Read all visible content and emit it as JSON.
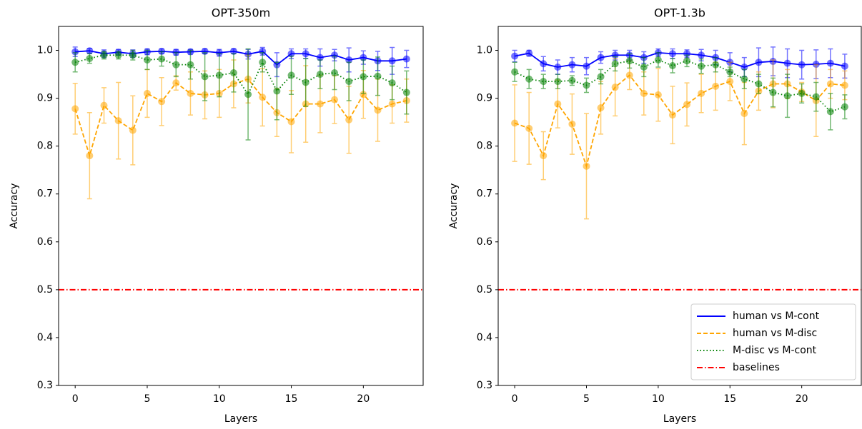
{
  "chart_data": [
    {
      "type": "line",
      "title": "OPT-350m",
      "xlabel": "Layers",
      "ylabel": "Accuracy",
      "x": [
        0,
        1,
        2,
        3,
        4,
        5,
        6,
        7,
        8,
        9,
        10,
        11,
        12,
        13,
        14,
        15,
        16,
        17,
        18,
        19,
        20,
        21,
        22,
        23
      ],
      "xlim": [
        -1.15,
        24.15
      ],
      "ylim": [
        0.3,
        1.05
      ],
      "xticks": [
        0,
        5,
        10,
        15,
        20
      ],
      "yticks": [
        0.3,
        0.4,
        0.5,
        0.6,
        0.7,
        0.8,
        0.9,
        {
          "value": 1,
          "label": "1.0"
        }
      ],
      "series": [
        {
          "color": "blue",
          "linestyle": "solid",
          "values": [
            0.997,
            0.999,
            0.993,
            0.996,
            0.993,
            0.997,
            0.998,
            0.996,
            0.997,
            0.998,
            0.995,
            0.998,
            0.992,
            0.998,
            0.97,
            0.993,
            0.993,
            0.985,
            0.99,
            0.98,
            0.985,
            0.978,
            0.978,
            0.982
          ],
          "errors": [
            0.01,
            0.005,
            0.008,
            0.006,
            0.008,
            0.006,
            0.005,
            0.006,
            0.005,
            0.005,
            0.007,
            0.005,
            0.01,
            0.008,
            0.025,
            0.01,
            0.01,
            0.018,
            0.012,
            0.025,
            0.014,
            0.02,
            0.028,
            0.018
          ]
        },
        {
          "color": "orange",
          "linestyle": "dashed",
          "values": [
            0.878,
            0.78,
            0.885,
            0.853,
            0.833,
            0.91,
            0.893,
            0.932,
            0.91,
            0.907,
            0.91,
            0.93,
            0.94,
            0.902,
            0.87,
            0.851,
            0.888,
            0.888,
            0.897,
            0.855,
            0.908,
            0.875,
            0.888,
            0.895
          ],
          "errors": [
            0.053,
            0.09,
            0.037,
            0.08,
            0.072,
            0.05,
            0.05,
            0.015,
            0.045,
            0.05,
            0.05,
            0.05,
            0.05,
            0.06,
            0.05,
            0.065,
            0.08,
            0.06,
            0.05,
            0.07,
            0.05,
            0.065,
            0.04,
            0.045
          ]
        },
        {
          "color": "green",
          "linestyle": "dotted",
          "values": [
            0.975,
            0.983,
            0.99,
            0.99,
            0.99,
            0.98,
            0.982,
            0.97,
            0.97,
            0.945,
            0.948,
            0.953,
            0.908,
            0.975,
            0.915,
            0.948,
            0.933,
            0.95,
            0.953,
            0.935,
            0.945,
            0.946,
            0.932,
            0.912
          ],
          "errors": [
            0.02,
            0.01,
            0.008,
            0.008,
            0.01,
            0.02,
            0.015,
            0.025,
            0.03,
            0.05,
            0.045,
            0.04,
            0.095,
            0.02,
            0.06,
            0.04,
            0.05,
            0.03,
            0.035,
            0.04,
            0.035,
            0.04,
            0.035,
            0.045
          ]
        }
      ],
      "hlines": [
        {
          "value": 0.5,
          "color": "red",
          "linestyle": "dashdot"
        }
      ]
    },
    {
      "type": "line",
      "title": "OPT-1.3b",
      "xlabel": "Layers",
      "ylabel": "Accuracy",
      "x": [
        0,
        1,
        2,
        3,
        4,
        5,
        6,
        7,
        8,
        9,
        10,
        11,
        12,
        13,
        14,
        15,
        16,
        17,
        18,
        19,
        20,
        21,
        22,
        23
      ],
      "xlim": [
        -1.15,
        24.15
      ],
      "ylim": [
        0.3,
        1.05
      ],
      "xticks": [
        0,
        5,
        10,
        15,
        20
      ],
      "yticks": [
        0.3,
        0.4,
        0.5,
        0.6,
        0.7,
        0.8,
        0.9,
        {
          "value": 1,
          "label": "1.0"
        }
      ],
      "legend": "lower right",
      "series": [
        {
          "name": "human vs M-cont",
          "color": "blue",
          "linestyle": "solid",
          "values": [
            0.988,
            0.994,
            0.972,
            0.965,
            0.97,
            0.967,
            0.985,
            0.99,
            0.99,
            0.985,
            0.995,
            0.993,
            0.993,
            0.99,
            0.985,
            0.975,
            0.965,
            0.975,
            0.977,
            0.973,
            0.97,
            0.971,
            0.973,
            0.967
          ],
          "errors": [
            0.012,
            0.006,
            0.015,
            0.015,
            0.015,
            0.018,
            0.012,
            0.01,
            0.01,
            0.012,
            0.008,
            0.01,
            0.008,
            0.012,
            0.015,
            0.02,
            0.02,
            0.03,
            0.03,
            0.03,
            0.03,
            0.03,
            0.03,
            0.025
          ]
        },
        {
          "name": "human vs M-disc",
          "color": "orange",
          "linestyle": "dashed",
          "values": [
            0.848,
            0.837,
            0.78,
            0.888,
            0.846,
            0.758,
            0.88,
            0.923,
            0.948,
            0.91,
            0.907,
            0.865,
            0.887,
            0.91,
            0.925,
            0.935,
            0.868,
            0.915,
            0.93,
            0.93,
            0.913,
            0.895,
            0.93,
            0.927
          ],
          "errors": [
            0.08,
            0.075,
            0.05,
            0.05,
            0.063,
            0.11,
            0.055,
            0.06,
            0.03,
            0.045,
            0.055,
            0.06,
            0.045,
            0.04,
            0.05,
            0.04,
            0.065,
            0.04,
            0.05,
            0.03,
            0.02,
            0.075,
            0.03,
            0.03
          ]
        },
        {
          "name": "M-disc vs M-cont",
          "color": "green",
          "linestyle": "dotted",
          "values": [
            0.955,
            0.94,
            0.935,
            0.935,
            0.937,
            0.927,
            0.945,
            0.972,
            0.978,
            0.965,
            0.98,
            0.968,
            0.978,
            0.967,
            0.97,
            0.955,
            0.94,
            0.93,
            0.912,
            0.905,
            0.91,
            0.903,
            0.872,
            0.882
          ],
          "errors": [
            0.02,
            0.02,
            0.015,
            0.015,
            0.01,
            0.015,
            0.015,
            0.015,
            0.015,
            0.02,
            0.015,
            0.015,
            0.012,
            0.015,
            0.015,
            0.01,
            0.02,
            0.02,
            0.03,
            0.045,
            0.02,
            0.03,
            0.038,
            0.025
          ]
        }
      ],
      "hlines": [
        {
          "name": "baselines",
          "value": 0.5,
          "color": "red",
          "linestyle": "dashdot"
        }
      ]
    }
  ]
}
